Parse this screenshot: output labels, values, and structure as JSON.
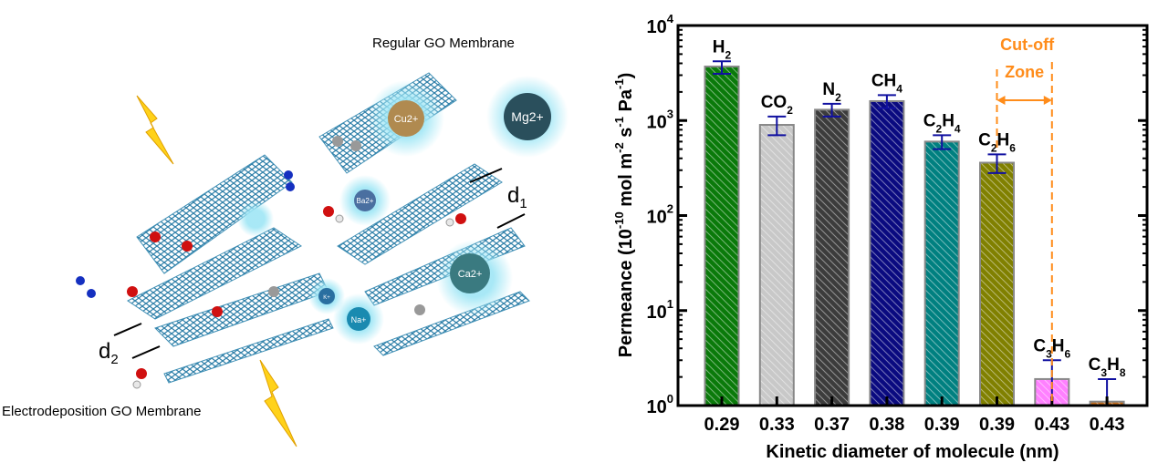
{
  "illustration": {
    "top_label": "Regular GO Membrane",
    "bottom_label": "Electrodeposition GO Membrane",
    "d1": "d",
    "d1_sub": "1",
    "d2": "d",
    "d2_sub": "2",
    "ions": [
      "Cu2+",
      "Mg2+",
      "Ba2+",
      "Ca2+",
      "K+",
      "Na+"
    ],
    "colors": {
      "sheet": "#3f8fb5",
      "oxygen": "#d01010",
      "hydrogen": "#e8e8e8",
      "nitrogen": "#1530c0",
      "glow": "#9fe6f5",
      "lightning": "#ffd21a"
    }
  },
  "chart_data": {
    "type": "bar",
    "xlabel": "Kinetic diameter of molecule (nm)",
    "ylabel_parts": [
      "Permeance (10",
      "-10",
      " mol m",
      "-2",
      " s",
      "-1",
      " Pa",
      "-1",
      ")"
    ],
    "yscale": "log",
    "ylim": [
      1,
      10000
    ],
    "yticks": [
      {
        "base": "10",
        "exp": "0"
      },
      {
        "base": "10",
        "exp": "1"
      },
      {
        "base": "10",
        "exp": "2"
      },
      {
        "base": "10",
        "exp": "3"
      },
      {
        "base": "10",
        "exp": "4"
      }
    ],
    "categories": [
      "0.29",
      "0.33",
      "0.37",
      "0.38",
      "0.39",
      "0.39",
      "0.43",
      "0.43"
    ],
    "molecules": [
      {
        "main": [
          "H"
        ],
        "subs": [
          "2"
        ]
      },
      {
        "main": [
          "CO"
        ],
        "subs": [
          "2"
        ]
      },
      {
        "main": [
          "N"
        ],
        "subs": [
          "2"
        ]
      },
      {
        "main": [
          "CH"
        ],
        "subs": [
          "4"
        ]
      },
      {
        "main": [
          "C",
          "H"
        ],
        "subs": [
          "2",
          "4"
        ]
      },
      {
        "main": [
          "C",
          "H"
        ],
        "subs": [
          "2",
          "6"
        ]
      },
      {
        "main": [
          "C",
          "H"
        ],
        "subs": [
          "3",
          "6"
        ]
      },
      {
        "main": [
          "C",
          "H"
        ],
        "subs": [
          "3",
          "8"
        ]
      }
    ],
    "values": [
      3700,
      900,
      1300,
      1600,
      600,
      360,
      1.9,
      1.1
    ],
    "error_low": [
      3100,
      700,
      1100,
      1350,
      500,
      280,
      1.0,
      1.0
    ],
    "error_high": [
      4200,
      1100,
      1500,
      1850,
      700,
      440,
      3.0,
      1.9
    ],
    "colors": [
      "#0a7a0a",
      "#c8c8c8",
      "#3c3c3c",
      "#0a0a80",
      "#008080",
      "#808000",
      "#ff80ff",
      "#c87020"
    ],
    "error_color": "#1010a0",
    "grid": false,
    "annotation": {
      "line1": "Cut-off",
      "line2": "Zone",
      "color": "#ff8c1a"
    }
  }
}
